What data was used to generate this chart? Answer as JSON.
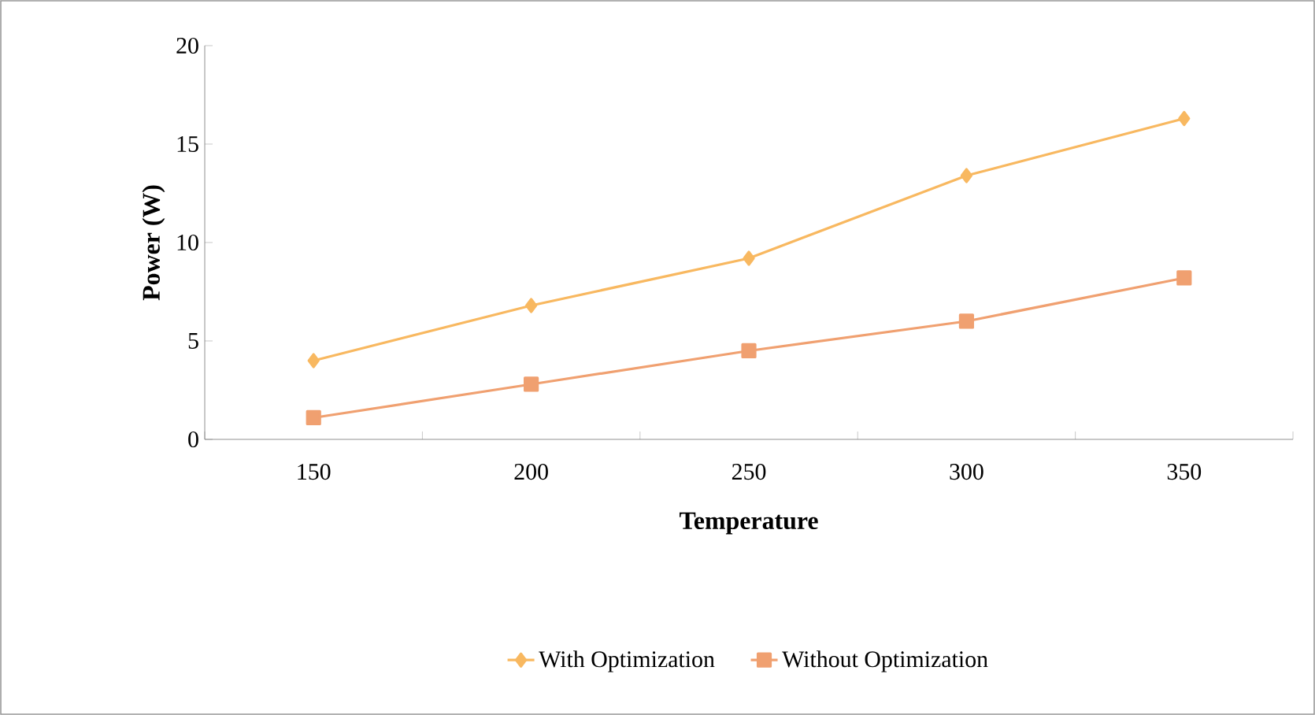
{
  "chart_data": {
    "type": "line",
    "xlabel": "Temperature",
    "ylabel": "Power (W)",
    "categories": [
      "150",
      "200",
      "250",
      "300",
      "350"
    ],
    "series": [
      {
        "name": "With Optimization",
        "color": "#f8b860",
        "marker": "diamond",
        "values": [
          4.0,
          6.8,
          9.2,
          13.4,
          16.3
        ]
      },
      {
        "name": "Without Optimization",
        "color": "#f0a070",
        "marker": "square",
        "values": [
          1.1,
          2.8,
          4.5,
          6.0,
          8.2
        ]
      }
    ],
    "ylim": [
      0,
      20
    ],
    "yticks": [
      0,
      5,
      10,
      15,
      20
    ],
    "grid": false,
    "legend": "bottom"
  }
}
